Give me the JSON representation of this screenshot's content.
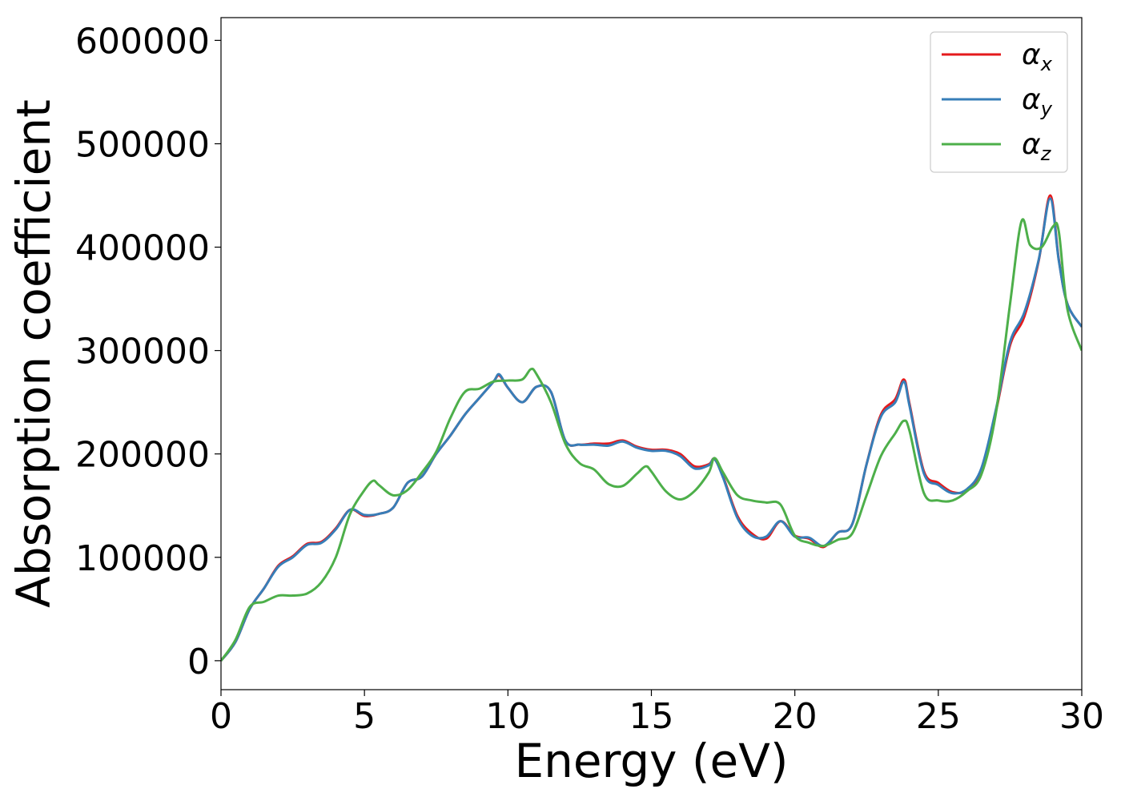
{
  "chart_data": {
    "type": "line",
    "xlabel": "Energy (eV)",
    "ylabel": "Absorption coefficient",
    "xlim": [
      0,
      30
    ],
    "ylim": [
      -28000,
      622000
    ],
    "xticks": [
      0,
      5,
      10,
      15,
      20,
      25,
      30
    ],
    "yticks": [
      0,
      100000,
      200000,
      300000,
      400000,
      500000,
      600000
    ],
    "xtick_labels": [
      "0",
      "5",
      "10",
      "15",
      "20",
      "25",
      "30"
    ],
    "ytick_labels": [
      "0",
      "100000",
      "200000",
      "300000",
      "400000",
      "500000",
      "600000"
    ],
    "legend_position": "top-right",
    "grid": false,
    "series": [
      {
        "name": "α",
        "subscript": "x",
        "color": "#e41a1c",
        "x": [
          0,
          0.5,
          1.0,
          1.5,
          2.0,
          2.5,
          3.0,
          3.5,
          4.0,
          4.5,
          5.0,
          5.5,
          6.0,
          6.5,
          7.0,
          7.5,
          8.0,
          8.5,
          9.0,
          9.5,
          9.7,
          10.0,
          10.5,
          11.0,
          11.5,
          12.0,
          12.5,
          13.0,
          13.5,
          14.0,
          14.5,
          15.0,
          15.5,
          16.0,
          16.5,
          17.0,
          17.2,
          17.5,
          18.0,
          18.5,
          19.0,
          19.5,
          20.0,
          20.5,
          21.0,
          21.5,
          22.0,
          22.5,
          23.0,
          23.5,
          23.8,
          24.0,
          24.5,
          25.0,
          25.5,
          26.0,
          26.5,
          27.0,
          27.5,
          28.0,
          28.5,
          28.9,
          29.2,
          29.5,
          30.0
        ],
        "values": [
          0,
          18000,
          50000,
          70000,
          92000,
          101000,
          113000,
          115000,
          128000,
          146000,
          140000,
          142000,
          148000,
          172000,
          178000,
          200000,
          218000,
          238000,
          254000,
          270000,
          276000,
          264000,
          250000,
          265000,
          260000,
          213000,
          209000,
          210000,
          210000,
          213000,
          207000,
          204000,
          204000,
          200000,
          188000,
          190000,
          195000,
          178000,
          140000,
          123000,
          118000,
          135000,
          121000,
          118000,
          110000,
          124000,
          132000,
          190000,
          238000,
          253000,
          272000,
          248000,
          183000,
          172000,
          163000,
          165000,
          185000,
          240000,
          305000,
          333000,
          387000,
          450000,
          388000,
          345000,
          323000
        ]
      },
      {
        "name": "α",
        "subscript": "y",
        "color": "#377eb8",
        "x": [
          0,
          0.5,
          1.0,
          1.5,
          2.0,
          2.5,
          3.0,
          3.5,
          4.0,
          4.5,
          5.0,
          5.5,
          6.0,
          6.5,
          7.0,
          7.5,
          8.0,
          8.5,
          9.0,
          9.5,
          9.7,
          10.0,
          10.5,
          11.0,
          11.5,
          12.0,
          12.5,
          13.0,
          13.5,
          14.0,
          14.5,
          15.0,
          15.5,
          16.0,
          16.5,
          17.0,
          17.2,
          17.5,
          18.0,
          18.5,
          19.0,
          19.5,
          20.0,
          20.5,
          21.0,
          21.5,
          22.0,
          22.5,
          23.0,
          23.5,
          23.8,
          24.0,
          24.5,
          25.0,
          25.5,
          26.0,
          26.5,
          27.0,
          27.5,
          28.0,
          28.5,
          28.9,
          29.2,
          29.5,
          30.0
        ],
        "values": [
          0,
          18000,
          50000,
          70000,
          91000,
          100000,
          112000,
          114000,
          127000,
          146000,
          141000,
          142000,
          148000,
          172000,
          178000,
          200000,
          218000,
          238000,
          254000,
          270000,
          277000,
          264000,
          250000,
          265000,
          260000,
          213000,
          209000,
          209000,
          208000,
          212000,
          206000,
          203000,
          203000,
          198000,
          186000,
          189000,
          195000,
          177000,
          138000,
          121000,
          120000,
          135000,
          120000,
          119000,
          111000,
          124000,
          132000,
          190000,
          236000,
          250000,
          270000,
          246000,
          181000,
          170000,
          162000,
          166000,
          186000,
          242000,
          308000,
          337000,
          388000,
          447000,
          387000,
          345000,
          323000
        ]
      },
      {
        "name": "α",
        "subscript": "z",
        "color": "#4daf4a",
        "x": [
          0,
          0.5,
          1.0,
          1.5,
          2.0,
          2.5,
          3.0,
          3.5,
          4.0,
          4.5,
          5.0,
          5.3,
          5.5,
          6.0,
          6.5,
          7.0,
          7.5,
          8.0,
          8.5,
          9.0,
          9.5,
          10.0,
          10.5,
          10.8,
          11.0,
          11.5,
          12.0,
          12.5,
          13.0,
          13.5,
          14.0,
          14.5,
          14.8,
          15.0,
          15.5,
          16.0,
          16.5,
          17.0,
          17.2,
          17.5,
          18.0,
          18.5,
          19.0,
          19.5,
          20.0,
          20.5,
          21.0,
          21.5,
          22.0,
          22.5,
          23.0,
          23.5,
          23.8,
          24.0,
          24.5,
          25.0,
          25.5,
          26.0,
          26.5,
          27.0,
          27.5,
          27.9,
          28.2,
          28.6,
          29.0,
          29.2,
          29.5,
          30.0
        ],
        "values": [
          0,
          20000,
          52000,
          57000,
          63000,
          63000,
          65000,
          76000,
          100000,
          142000,
          165000,
          174000,
          170000,
          160000,
          165000,
          182000,
          202000,
          235000,
          260000,
          263000,
          270000,
          271000,
          272000,
          282000,
          277000,
          250000,
          210000,
          191000,
          185000,
          171000,
          169000,
          181000,
          188000,
          183000,
          164000,
          156000,
          164000,
          182000,
          196000,
          182000,
          160000,
          155000,
          153000,
          151000,
          121000,
          114000,
          111000,
          117000,
          123000,
          160000,
          198000,
          220000,
          232000,
          222000,
          162000,
          155000,
          155000,
          164000,
          180000,
          238000,
          345000,
          425000,
          402000,
          400000,
          420000,
          415000,
          340000,
          300000
        ]
      }
    ]
  }
}
